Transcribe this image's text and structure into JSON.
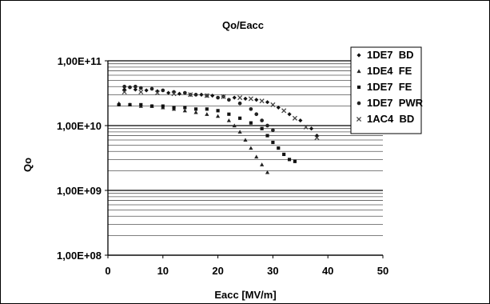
{
  "chart_data": {
    "type": "scatter",
    "title": "Qo/Eacc",
    "xlabel": "Eacc [MV/m]",
    "ylabel": "Qo",
    "xlim": [
      0,
      50
    ],
    "ylim": [
      100000000.0,
      100000000000.0
    ],
    "y_scale": "log",
    "grid": "horizontal minor and major lines",
    "legend_position": "right",
    "x_ticks": [
      "0",
      "10",
      "20",
      "30",
      "40",
      "50"
    ],
    "y_ticks": [
      "1,00E+08",
      "1,00E+09",
      "1,00E+10",
      "1,00E+11"
    ],
    "series": [
      {
        "name": "1DE7  BD",
        "marker": "diamond",
        "x": [
          3,
          5,
          7,
          9,
          11,
          13,
          15,
          17,
          19,
          21,
          23,
          25,
          27,
          29,
          31,
          33,
          35,
          37,
          38
        ],
        "y": [
          36000000000.0,
          36000000000.0,
          35000000000.0,
          34000000000.0,
          32000000000.0,
          31000000000.0,
          30000000000.0,
          30000000000.0,
          29000000000.0,
          28000000000.0,
          27000000000.0,
          26000000000.0,
          25000000000.0,
          23000000000.0,
          19000000000.0,
          15000000000.0,
          12000000000.0,
          9000000000.0,
          7000000000.0
        ]
      },
      {
        "name": "1DE4  FE",
        "marker": "triangle",
        "x": [
          2,
          4,
          6,
          8,
          10,
          12,
          14,
          16,
          18,
          20,
          22,
          23,
          24,
          25,
          26,
          27,
          28,
          29
        ],
        "y": [
          22000000000.0,
          21000000000.0,
          20000000000.0,
          20000000000.0,
          19000000000.0,
          18000000000.0,
          17000000000.0,
          16000000000.0,
          15000000000.0,
          14000000000.0,
          12000000000.0,
          10000000000.0,
          8000000000.0,
          6000000000.0,
          4500000000.0,
          3300000000.0,
          2500000000.0,
          1900000000.0
        ]
      },
      {
        "name": "1DE7  FE",
        "marker": "square",
        "x": [
          2,
          4,
          6,
          8,
          10,
          12,
          14,
          16,
          18,
          20,
          22,
          24,
          26,
          28,
          29,
          30,
          31,
          32,
          33,
          34
        ],
        "y": [
          21000000000.0,
          21000000000.0,
          21000000000.0,
          20000000000.0,
          20000000000.0,
          19000000000.0,
          19000000000.0,
          18000000000.0,
          18000000000.0,
          17000000000.0,
          15000000000.0,
          13000000000.0,
          11000000000.0,
          9000000000.0,
          7000000000.0,
          5500000000.0,
          4500000000.0,
          3600000000.0,
          3000000000.0,
          2800000000.0
        ]
      },
      {
        "name": "1DE7  PWR",
        "marker": "circle",
        "x": [
          3,
          4,
          5,
          6,
          8,
          10,
          12,
          14,
          16,
          18,
          20,
          22,
          24,
          26,
          27,
          28,
          29,
          30
        ],
        "y": [
          40000000000.0,
          39000000000.0,
          40000000000.0,
          38000000000.0,
          37000000000.0,
          35000000000.0,
          33000000000.0,
          32000000000.0,
          30000000000.0,
          29000000000.0,
          27000000000.0,
          25000000000.0,
          22000000000.0,
          18000000000.0,
          15000000000.0,
          12000000000.0,
          10000000000.0,
          8500000000.0
        ]
      },
      {
        "name": "1AC4  BD",
        "marker": "x",
        "x": [
          3,
          6,
          9,
          12,
          15,
          18,
          21,
          24,
          26,
          28,
          30,
          32,
          34,
          36,
          38
        ],
        "y": [
          33000000000.0,
          33000000000.0,
          32000000000.0,
          31000000000.0,
          30000000000.0,
          29000000000.0,
          28000000000.0,
          27000000000.0,
          26000000000.0,
          24000000000.0,
          21000000000.0,
          17000000000.0,
          13000000000.0,
          9500000000.0,
          6500000000.0
        ]
      }
    ]
  }
}
